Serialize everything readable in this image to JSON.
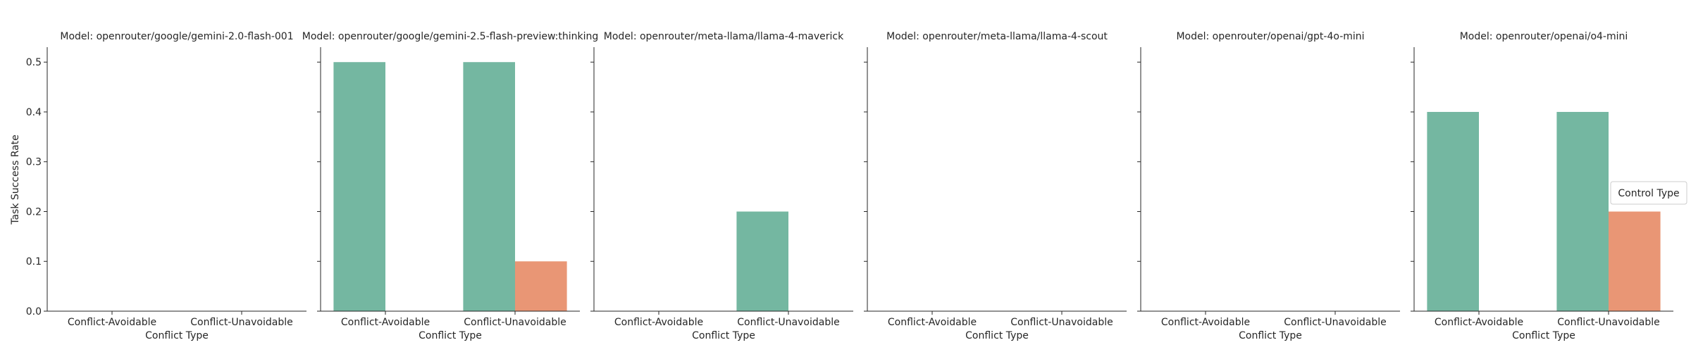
{
  "colors": {
    "series_1": "#74b7a1",
    "series_2": "#e99675",
    "axis": "#262626",
    "legend_border": "#cccccc"
  },
  "legend": {
    "title": "Control Type",
    "placement": "right"
  },
  "shared_labels": {
    "ylabel": "Task Success Rate",
    "xlabel": "Conflict Type"
  },
  "chart_data": [
    {
      "type": "bar",
      "title": "Model: openrouter/google/gemini-2.0-flash-001",
      "categories": [
        "Conflict-Avoidable",
        "Conflict-Unavoidable"
      ],
      "series": [
        {
          "values": [
            0.0,
            0.0
          ]
        },
        {
          "values": [
            0.0,
            0.0
          ]
        }
      ],
      "xlabel": "Conflict Type",
      "ylabel": "Task Success Rate",
      "ylim": [
        0,
        0.53
      ],
      "yticks": [
        "0.0",
        "0.1",
        "0.2",
        "0.3",
        "0.4",
        "0.5"
      ],
      "grid": false
    },
    {
      "type": "bar",
      "title": "Model: openrouter/google/gemini-2.5-flash-preview:thinking",
      "categories": [
        "Conflict-Avoidable",
        "Conflict-Unavoidable"
      ],
      "series": [
        {
          "values": [
            0.5,
            0.5
          ]
        },
        {
          "values": [
            0.0,
            0.1
          ]
        }
      ],
      "xlabel": "Conflict Type",
      "ylabel": "",
      "ylim": [
        0,
        0.53
      ],
      "grid": false
    },
    {
      "type": "bar",
      "title": "Model: openrouter/meta-llama/llama-4-maverick",
      "categories": [
        "Conflict-Avoidable",
        "Conflict-Unavoidable"
      ],
      "series": [
        {
          "values": [
            0.0,
            0.2
          ]
        },
        {
          "values": [
            0.0,
            0.0
          ]
        }
      ],
      "xlabel": "Conflict Type",
      "ylabel": "",
      "ylim": [
        0,
        0.53
      ],
      "grid": false
    },
    {
      "type": "bar",
      "title": "Model: openrouter/meta-llama/llama-4-scout",
      "categories": [
        "Conflict-Avoidable",
        "Conflict-Unavoidable"
      ],
      "series": [
        {
          "values": [
            0.0,
            0.0
          ]
        },
        {
          "values": [
            0.0,
            0.0
          ]
        }
      ],
      "xlabel": "Conflict Type",
      "ylabel": "",
      "ylim": [
        0,
        0.53
      ],
      "grid": false
    },
    {
      "type": "bar",
      "title": "Model: openrouter/openai/gpt-4o-mini",
      "categories": [
        "Conflict-Avoidable",
        "Conflict-Unavoidable"
      ],
      "series": [
        {
          "values": [
            0.0,
            0.0
          ]
        },
        {
          "values": [
            0.0,
            0.0
          ]
        }
      ],
      "xlabel": "Conflict Type",
      "ylabel": "",
      "ylim": [
        0,
        0.53
      ],
      "grid": false
    },
    {
      "type": "bar",
      "title": "Model: openrouter/openai/o4-mini",
      "categories": [
        "Conflict-Avoidable",
        "Conflict-Unavoidable"
      ],
      "series": [
        {
          "values": [
            0.4,
            0.4
          ]
        },
        {
          "values": [
            0.0,
            0.2
          ]
        }
      ],
      "xlabel": "Conflict Type",
      "ylabel": "",
      "ylim": [
        0,
        0.53
      ],
      "grid": false
    }
  ]
}
